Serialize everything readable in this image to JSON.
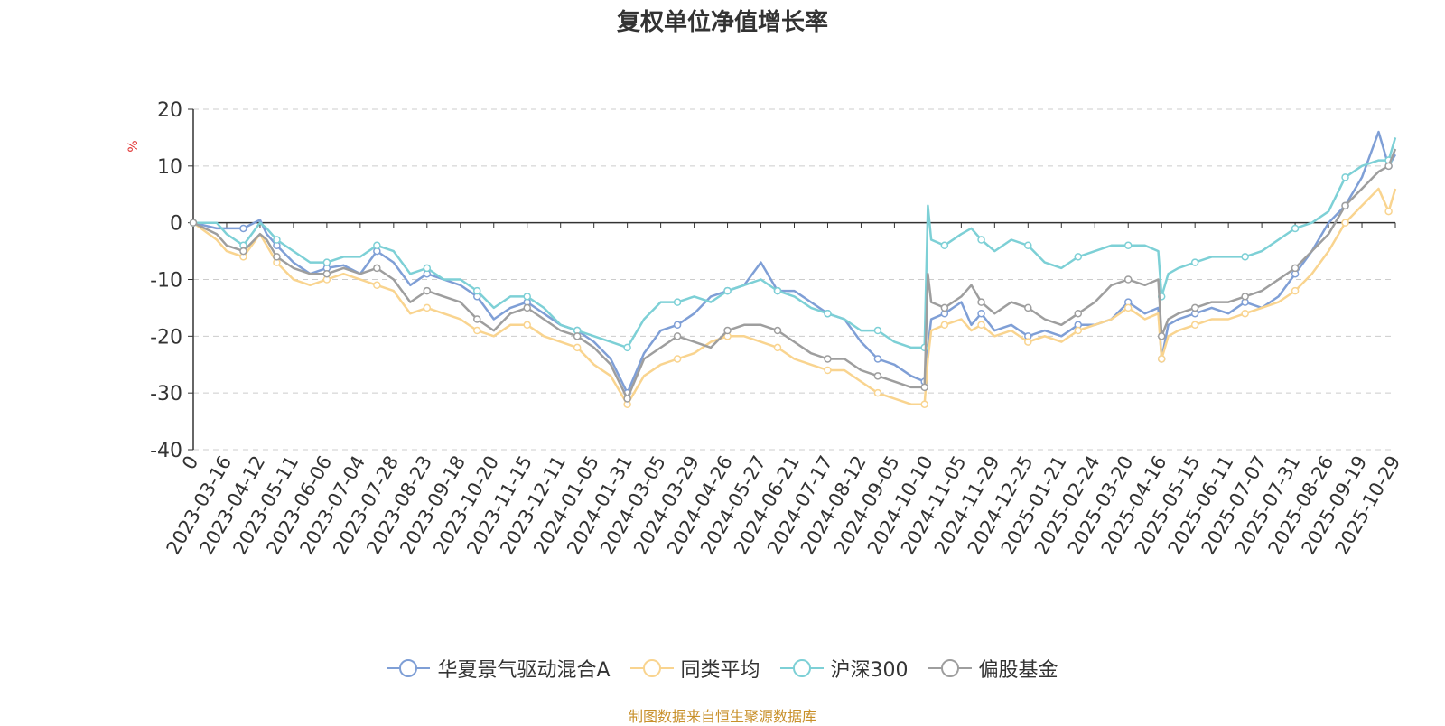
{
  "chart_data": {
    "type": "line",
    "title": "复权单位净值增长率",
    "ylabel": "%",
    "ylim": [
      -40,
      20
    ],
    "yticks": [
      20,
      10,
      0,
      -10,
      -20,
      -30,
      -40
    ],
    "grid": true,
    "legend_position": "bottom",
    "xticks": [
      "0",
      "2023-03-16",
      "2023-04-12",
      "2023-05-11",
      "2023-06-06",
      "2023-07-04",
      "2023-07-28",
      "2023-08-23",
      "2023-09-18",
      "2023-10-20",
      "2023-11-15",
      "2023-12-11",
      "2024-01-05",
      "2024-01-31",
      "2024-03-05",
      "2024-03-29",
      "2024-04-26",
      "2024-05-27",
      "2024-06-21",
      "2024-07-17",
      "2024-08-12",
      "2024-09-05",
      "2024-10-10",
      "2024-11-05",
      "2024-11-29",
      "2024-12-25",
      "2025-01-21",
      "2025-02-24",
      "2025-03-20",
      "2025-04-16",
      "2025-05-15",
      "2025-06-11",
      "2025-07-07",
      "2025-07-31",
      "2025-08-26",
      "2025-09-19",
      "2025-10-29"
    ],
    "x_index": [
      0,
      1,
      2,
      3,
      4,
      5,
      6,
      7,
      8,
      9,
      10,
      11,
      12,
      13,
      14,
      15,
      16,
      17,
      18,
      19,
      20,
      21,
      22,
      23,
      24,
      25,
      26,
      27,
      28,
      29,
      30,
      31,
      32,
      33,
      34,
      35,
      36
    ],
    "series": [
      {
        "name": "华夏景气驱动混合A",
        "color": "#7f9fd6",
        "x": [
          0,
          0.7,
          1,
          1.5,
          2,
          2.2,
          2.5,
          3,
          3.5,
          4,
          4.5,
          5,
          5.5,
          6,
          6.5,
          7,
          7.5,
          8,
          8.5,
          9,
          9.5,
          10,
          10.5,
          11,
          11.5,
          12,
          12.5,
          13,
          13.5,
          14,
          14.5,
          15,
          15.5,
          16,
          16.5,
          17,
          17.5,
          18,
          18.5,
          19,
          19.5,
          20,
          20.5,
          21,
          21.5,
          21.9,
          22,
          22.1,
          22.5,
          23,
          23.3,
          23.6,
          24,
          24.5,
          25,
          25.5,
          26,
          26.5,
          27,
          27.5,
          28,
          28.5,
          28.9,
          29,
          29.2,
          29.5,
          30,
          30.5,
          31,
          31.5,
          32,
          32.5,
          33,
          33.5,
          34,
          34.5,
          35,
          35.5,
          35.8,
          36
        ],
        "values": [
          0,
          -1,
          -1,
          -1,
          0.5,
          -2,
          -4,
          -7,
          -9,
          -8,
          -7.5,
          -9,
          -5,
          -7,
          -11,
          -9,
          -10,
          -11,
          -13,
          -17,
          -15,
          -14,
          -16,
          -18,
          -19,
          -21,
          -24,
          -30,
          -23,
          -19,
          -18,
          -16,
          -13,
          -12,
          -11,
          -7,
          -12,
          -12,
          -14,
          -16,
          -17,
          -21,
          -24,
          -25,
          -27,
          -28,
          -22,
          -17,
          -16,
          -14,
          -18,
          -16,
          -19,
          -18,
          -20,
          -19,
          -20,
          -18,
          -18,
          -17,
          -14,
          -16,
          -15,
          -24,
          -18,
          -17,
          -16,
          -15,
          -16,
          -14,
          -15,
          -13,
          -9,
          -5,
          0,
          3,
          8,
          16,
          10,
          12
        ]
      },
      {
        "name": "同类平均",
        "color": "#f9d48f",
        "x": [
          0,
          0.7,
          1,
          1.5,
          2,
          2.2,
          2.5,
          3,
          3.5,
          4,
          4.5,
          5,
          5.5,
          6,
          6.5,
          7,
          7.5,
          8,
          8.5,
          9,
          9.5,
          10,
          10.5,
          11,
          11.5,
          12,
          12.5,
          13,
          13.5,
          14,
          14.5,
          15,
          15.5,
          16,
          16.5,
          17,
          17.5,
          18,
          18.5,
          19,
          19.5,
          20,
          20.5,
          21,
          21.5,
          21.9,
          22,
          22.1,
          22.5,
          23,
          23.3,
          23.6,
          24,
          24.5,
          25,
          25.5,
          26,
          26.5,
          27,
          27.5,
          28,
          28.5,
          28.9,
          29,
          29.2,
          29.5,
          30,
          30.5,
          31,
          31.5,
          32,
          32.5,
          33,
          33.5,
          34,
          34.5,
          35,
          35.5,
          35.8,
          36
        ],
        "values": [
          0,
          -3,
          -5,
          -6,
          -2,
          -4,
          -7,
          -10,
          -11,
          -10,
          -9,
          -10,
          -11,
          -12,
          -16,
          -15,
          -16,
          -17,
          -19,
          -20,
          -18,
          -18,
          -20,
          -21,
          -22,
          -25,
          -27,
          -32,
          -27,
          -25,
          -24,
          -23,
          -21,
          -20,
          -20,
          -21,
          -22,
          -24,
          -25,
          -26,
          -26,
          -28,
          -30,
          -31,
          -32,
          -32,
          -24,
          -19,
          -18,
          -17,
          -19,
          -18,
          -20,
          -19,
          -21,
          -20,
          -21,
          -19,
          -18,
          -17,
          -15,
          -17,
          -16,
          -24,
          -20,
          -19,
          -18,
          -17,
          -17,
          -16,
          -15,
          -14,
          -12,
          -9,
          -5,
          0,
          3,
          6,
          2,
          6
        ]
      },
      {
        "name": "沪深300",
        "color": "#7dd0d6",
        "x": [
          0,
          0.7,
          1,
          1.5,
          2,
          2.2,
          2.5,
          3,
          3.5,
          4,
          4.5,
          5,
          5.5,
          6,
          6.5,
          7,
          7.5,
          8,
          8.5,
          9,
          9.5,
          10,
          10.5,
          11,
          11.5,
          12,
          12.5,
          13,
          13.5,
          14,
          14.5,
          15,
          15.5,
          16,
          16.5,
          17,
          17.5,
          18,
          18.5,
          19,
          19.5,
          20,
          20.5,
          21,
          21.5,
          21.9,
          22,
          22.1,
          22.5,
          23,
          23.3,
          23.6,
          24,
          24.5,
          25,
          25.5,
          26,
          26.5,
          27,
          27.5,
          28,
          28.5,
          28.9,
          29,
          29.2,
          29.5,
          30,
          30.5,
          31,
          31.5,
          32,
          32.5,
          33,
          33.5,
          34,
          34.5,
          35,
          35.5,
          35.8,
          36
        ],
        "values": [
          0,
          0,
          -2,
          -4,
          0,
          -1,
          -3,
          -5,
          -7,
          -7,
          -6,
          -6,
          -4,
          -5,
          -9,
          -8,
          -10,
          -10,
          -12,
          -15,
          -13,
          -13,
          -15,
          -18,
          -19,
          -20,
          -21,
          -22,
          -17,
          -14,
          -14,
          -13,
          -14,
          -12,
          -11,
          -10,
          -12,
          -13,
          -15,
          -16,
          -17,
          -19,
          -19,
          -21,
          -22,
          -22,
          3,
          -3,
          -4,
          -2,
          -1,
          -3,
          -5,
          -3,
          -4,
          -7,
          -8,
          -6,
          -5,
          -4,
          -4,
          -4,
          -5,
          -13,
          -9,
          -8,
          -7,
          -6,
          -6,
          -6,
          -5,
          -3,
          -1,
          0,
          2,
          8,
          10,
          11,
          11,
          15
        ]
      },
      {
        "name": "偏股基金",
        "color": "#9e9e9e",
        "x": [
          0,
          0.7,
          1,
          1.5,
          2,
          2.2,
          2.5,
          3,
          3.5,
          4,
          4.5,
          5,
          5.5,
          6,
          6.5,
          7,
          7.5,
          8,
          8.5,
          9,
          9.5,
          10,
          10.5,
          11,
          11.5,
          12,
          12.5,
          13,
          13.5,
          14,
          14.5,
          15,
          15.5,
          16,
          16.5,
          17,
          17.5,
          18,
          18.5,
          19,
          19.5,
          20,
          20.5,
          21,
          21.5,
          21.9,
          22,
          22.1,
          22.5,
          23,
          23.3,
          23.6,
          24,
          24.5,
          25,
          25.5,
          26,
          26.5,
          27,
          27.5,
          28,
          28.5,
          28.9,
          29,
          29.2,
          29.5,
          30,
          30.5,
          31,
          31.5,
          32,
          32.5,
          33,
          33.5,
          34,
          34.5,
          35,
          35.5,
          35.8,
          36
        ],
        "values": [
          0,
          -2,
          -4,
          -5,
          -2,
          -3,
          -6,
          -8,
          -9,
          -9,
          -8,
          -9,
          -8,
          -10,
          -14,
          -12,
          -13,
          -14,
          -17,
          -19,
          -16,
          -15,
          -17,
          -19,
          -20,
          -22,
          -25,
          -31,
          -24,
          -22,
          -20,
          -21,
          -22,
          -19,
          -18,
          -18,
          -19,
          -21,
          -23,
          -24,
          -24,
          -26,
          -27,
          -28,
          -29,
          -29,
          -9,
          -14,
          -15,
          -13,
          -11,
          -14,
          -16,
          -14,
          -15,
          -17,
          -18,
          -16,
          -14,
          -11,
          -10,
          -11,
          -10,
          -20,
          -17,
          -16,
          -15,
          -14,
          -14,
          -13,
          -12,
          -10,
          -8,
          -5,
          -2,
          3,
          6,
          9,
          10,
          13
        ]
      }
    ]
  },
  "source_note": "制图数据来自恒生聚源数据库"
}
